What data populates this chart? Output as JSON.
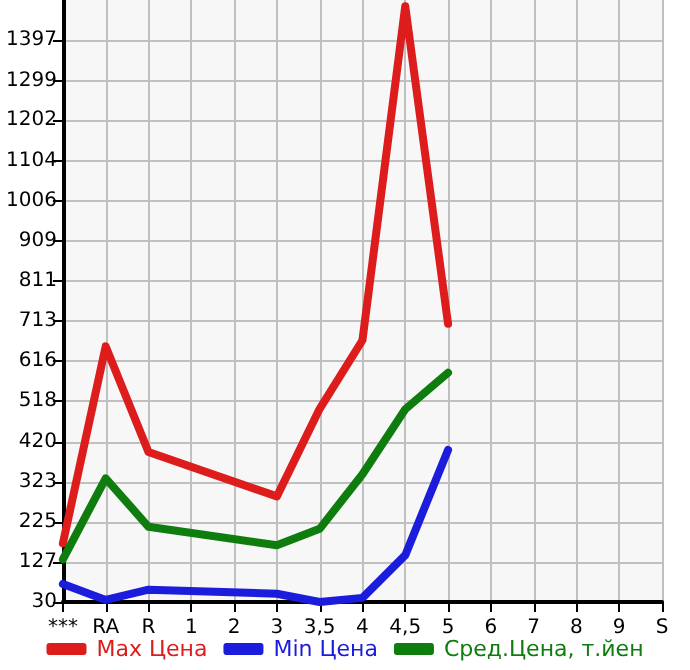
{
  "chart_data": {
    "type": "line",
    "categories": [
      "***",
      "RA",
      "R",
      "1",
      "2",
      "3",
      "3,5",
      "4",
      "4,5",
      "5",
      "6",
      "7",
      "8",
      "9",
      "S"
    ],
    "series": [
      {
        "name": "Max Цена",
        "color": "#dd1c1c",
        "values": [
          173,
          652,
          395,
          null,
          null,
          287,
          500,
          667,
          1480,
          707,
          null,
          null,
          null,
          null,
          null
        ]
      },
      {
        "name": "Min Цена",
        "color": "#1c1cdd",
        "values": [
          74,
          35,
          60,
          null,
          null,
          50,
          30,
          40,
          144,
          400,
          null,
          null,
          null,
          null,
          null
        ]
      },
      {
        "name": "Сред.Цена, т.йен",
        "color": "#0e7d0e",
        "values": [
          134,
          331,
          213,
          null,
          null,
          168,
          208,
          341,
          499,
          588,
          null,
          null,
          null,
          null,
          null
        ]
      }
    ],
    "ylim": [
      30,
      1495
    ],
    "yticks": [
      30,
      127,
      225,
      323,
      420,
      518,
      616,
      713,
      811,
      909,
      1006,
      1104,
      1202,
      1299,
      1397
    ],
    "grid": true,
    "legend": "bottom",
    "marker": "none",
    "line_style": "solid"
  }
}
